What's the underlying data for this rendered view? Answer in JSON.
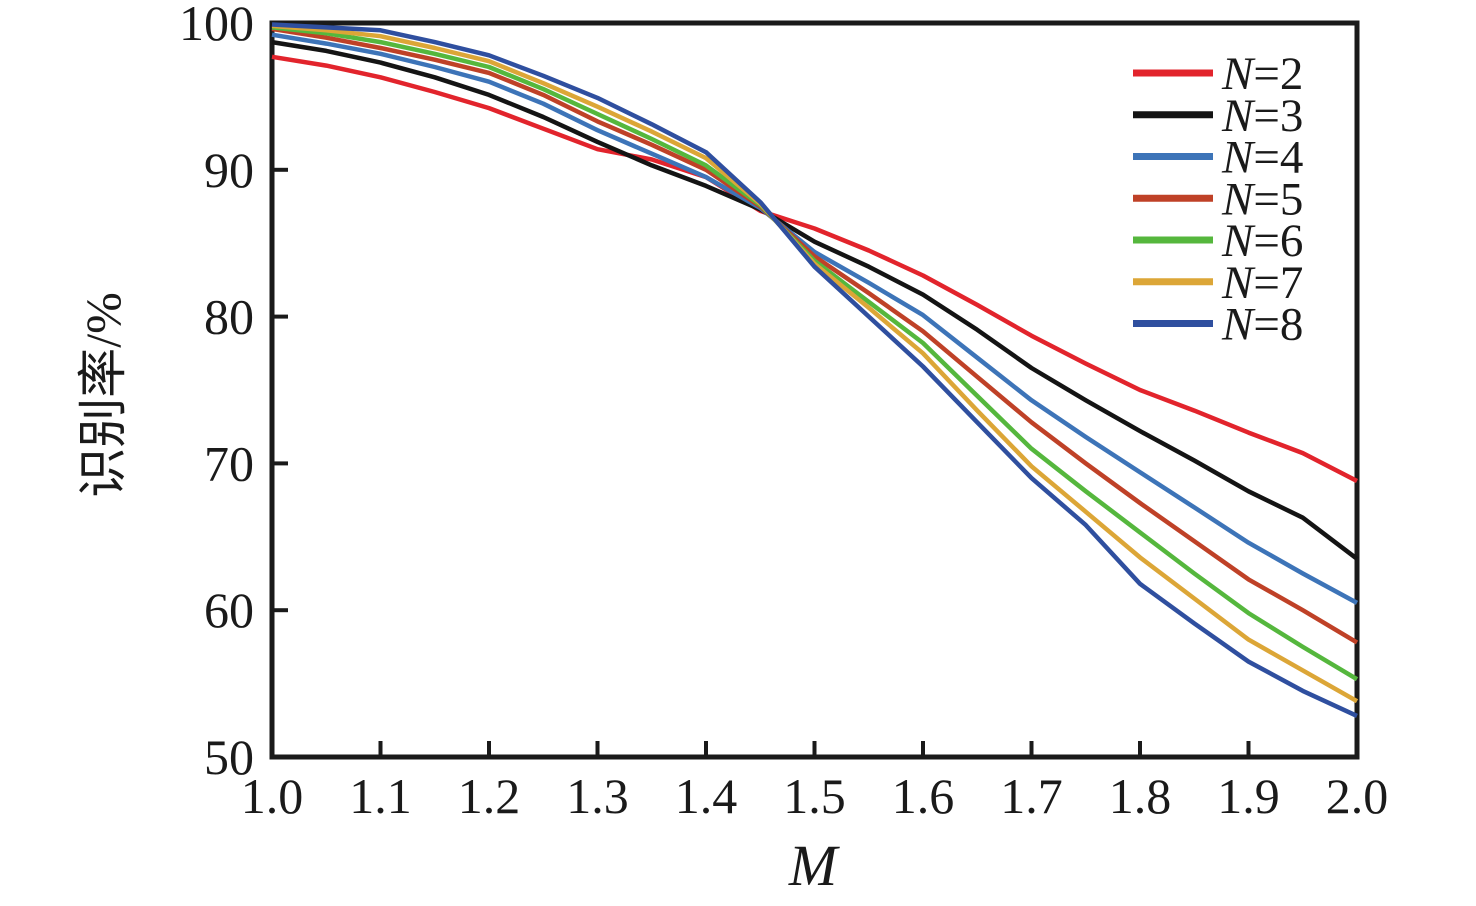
{
  "chart_data": {
    "type": "line",
    "title": "",
    "xlabel": "M",
    "ylabel": "识别率/%",
    "xlim": [
      1.0,
      2.0
    ],
    "ylim": [
      50,
      100
    ],
    "grid": false,
    "legend_position": "top-right",
    "xticks": [
      {
        "v": 1.0,
        "label": "1.0"
      },
      {
        "v": 1.1,
        "label": "1.1"
      },
      {
        "v": 1.2,
        "label": "1.2"
      },
      {
        "v": 1.3,
        "label": "1.3"
      },
      {
        "v": 1.4,
        "label": "1.4"
      },
      {
        "v": 1.5,
        "label": "1.5"
      },
      {
        "v": 1.6,
        "label": "1.6"
      },
      {
        "v": 1.7,
        "label": "1.7"
      },
      {
        "v": 1.8,
        "label": "1.8"
      },
      {
        "v": 1.9,
        "label": "1.9"
      },
      {
        "v": 2.0,
        "label": "2.0"
      }
    ],
    "yticks": [
      {
        "v": 50,
        "label": "50"
      },
      {
        "v": 60,
        "label": "60"
      },
      {
        "v": 70,
        "label": "70"
      },
      {
        "v": 80,
        "label": "80"
      },
      {
        "v": 90,
        "label": "90"
      },
      {
        "v": 100,
        "label": "100"
      }
    ],
    "x": [
      1.0,
      1.05,
      1.1,
      1.15,
      1.2,
      1.25,
      1.3,
      1.35,
      1.4,
      1.45,
      1.5,
      1.55,
      1.6,
      1.65,
      1.7,
      1.75,
      1.8,
      1.85,
      1.9,
      1.95,
      2.0
    ],
    "series": [
      {
        "name": "N=2",
        "color": "#e2242c",
        "values": [
          97.7,
          97.1,
          96.3,
          95.3,
          94.2,
          92.8,
          91.4,
          90.7,
          89.5,
          87.2,
          86.0,
          84.5,
          82.8,
          80.8,
          78.7,
          76.8,
          75.0,
          73.6,
          72.1,
          70.7,
          68.8
        ]
      },
      {
        "name": "N=3",
        "color": "#141414",
        "values": [
          98.7,
          98.1,
          97.3,
          96.3,
          95.1,
          93.6,
          91.9,
          90.3,
          88.9,
          87.3,
          85.1,
          83.4,
          81.5,
          79.1,
          76.5,
          74.3,
          72.2,
          70.2,
          68.1,
          66.3,
          63.5
        ]
      },
      {
        "name": "N=4",
        "color": "#3d74b8",
        "values": [
          99.2,
          98.6,
          97.9,
          97.0,
          96.0,
          94.5,
          92.7,
          91.1,
          89.5,
          87.4,
          84.4,
          82.3,
          80.1,
          77.2,
          74.3,
          71.8,
          69.4,
          67.0,
          64.6,
          62.5,
          60.5
        ]
      },
      {
        "name": "N=5",
        "color": "#bf4127",
        "values": [
          99.6,
          99.0,
          98.3,
          97.5,
          96.6,
          95.1,
          93.3,
          91.7,
          90.0,
          87.5,
          84.1,
          81.6,
          79.0,
          75.9,
          72.8,
          70.0,
          67.3,
          64.7,
          62.1,
          60.0,
          57.8
        ]
      },
      {
        "name": "N=6",
        "color": "#55b73d",
        "values": [
          99.7,
          99.3,
          98.7,
          97.9,
          97.0,
          95.5,
          93.8,
          92.1,
          90.3,
          87.6,
          83.8,
          81.0,
          78.2,
          74.6,
          71.0,
          68.1,
          65.3,
          62.5,
          59.8,
          57.5,
          55.3
        ]
      },
      {
        "name": "N=7",
        "color": "#dca637",
        "values": [
          99.8,
          99.5,
          99.1,
          98.3,
          97.4,
          95.9,
          94.3,
          92.6,
          90.8,
          87.7,
          83.6,
          80.6,
          77.5,
          73.6,
          69.8,
          66.7,
          63.6,
          60.8,
          58.0,
          55.9,
          53.8
        ]
      },
      {
        "name": "N=8",
        "color": "#2f4f9f",
        "values": [
          99.9,
          99.7,
          99.5,
          98.7,
          97.8,
          96.4,
          94.9,
          93.1,
          91.2,
          87.8,
          83.4,
          80.0,
          76.6,
          72.8,
          69.0,
          65.8,
          61.8,
          59.1,
          56.5,
          54.5,
          52.8
        ]
      }
    ]
  }
}
